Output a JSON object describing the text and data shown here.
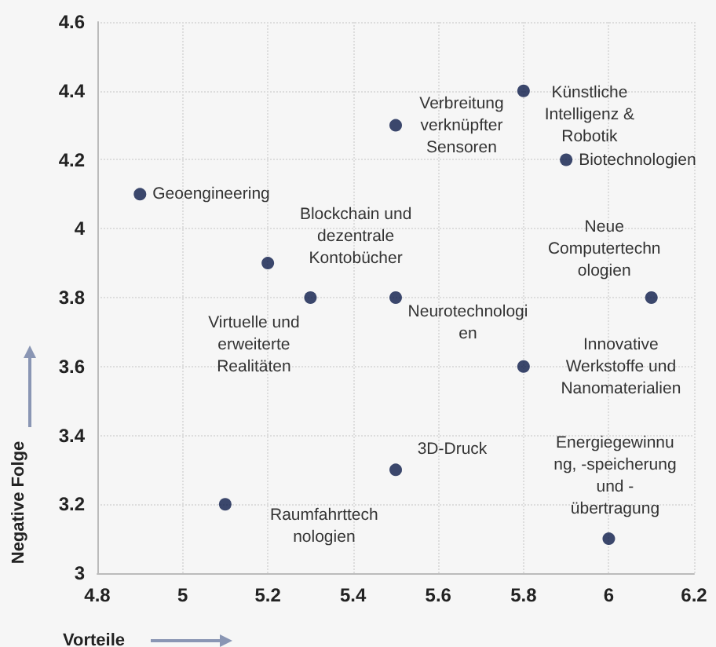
{
  "chart_data": {
    "type": "scatter",
    "xlabel": "Vorteile",
    "ylabel": "Negative Folge",
    "color": "#0d1b4a",
    "marker": "circle",
    "grid": true,
    "x": [
      4.9,
      5.2,
      5.3,
      5.5,
      5.5,
      5.5,
      5.8,
      5.9,
      6.1,
      5.8,
      6.0,
      5.1
    ],
    "values": [
      4.1,
      3.9,
      3.8,
      4.3,
      3.8,
      3.3,
      4.4,
      4.2,
      3.8,
      3.6,
      3.1,
      3.2
    ],
    "xlim": [
      4.8,
      6.2
    ],
    "xticks": [
      4.8,
      5,
      5.2,
      5.4,
      5.6,
      5.8,
      6,
      6.2
    ],
    "ylim": [
      3,
      4.6
    ],
    "yticks": [
      3,
      3.2,
      3.4,
      3.6,
      3.8,
      4,
      4.2,
      4.4,
      4.6
    ],
    "annotations": [
      {
        "text": "Geoengineering",
        "x": 4.9,
        "y": 4.1
      },
      {
        "text": "Blockchain und\ndezentrale\nKontobücher",
        "x": 5.2,
        "y": 3.9
      },
      {
        "text": "Virtuelle und\nerweiterte\nRealitäten",
        "x": 5.3,
        "y": 3.8
      },
      {
        "text": "Verbreitung\nverknüpfter\nSensoren",
        "x": 5.5,
        "y": 4.3
      },
      {
        "text": "Neurotechnologi\nen",
        "x": 5.5,
        "y": 3.8
      },
      {
        "text": "3D-Druck",
        "x": 5.5,
        "y": 3.3
      },
      {
        "text": "Künstliche\nIntelligenz &\nRobotik",
        "x": 5.8,
        "y": 4.4
      },
      {
        "text": "Biotechnologien",
        "x": 5.9,
        "y": 4.2
      },
      {
        "text": "Neue\nComputertechn\nologien",
        "x": 6.1,
        "y": 3.8
      },
      {
        "text": "Innovative\nWerkstoffe und\nNanomaterialien",
        "x": 5.8,
        "y": 3.6
      },
      {
        "text": "Energiegewinnu\nng, -speicherung\nund -\nübertragung",
        "x": 6.0,
        "y": 3.1
      },
      {
        "text": "Raumfahrttech\nnologien",
        "x": 5.1,
        "y": 3.2
      }
    ]
  }
}
